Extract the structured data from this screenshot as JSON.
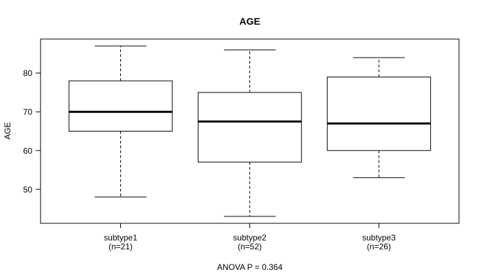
{
  "title": "AGE",
  "y_axis": {
    "label": "AGE",
    "ticks": [
      50,
      60,
      70,
      80
    ]
  },
  "footer": {
    "anova_label": "ANOVA P = 0.364"
  },
  "colors": {
    "background": "#ffffff",
    "line": "#000000",
    "box_fill": "#ffffff",
    "text": "#000000"
  },
  "chart_data": {
    "type": "boxplot",
    "title": "AGE",
    "xlabel": "",
    "ylabel": "AGE",
    "ylim": [
      41.2,
      88.8
    ],
    "yticks": [
      50,
      60,
      70,
      80
    ],
    "grid": false,
    "legend": "none",
    "categories": [
      "subtype1",
      "subtype2",
      "subtype3"
    ],
    "category_sublabels": [
      "(n=21)",
      "(n=52)",
      "(n=26)"
    ],
    "groups": [
      {
        "label": "subtype1",
        "n": 21,
        "whisker_low": 48,
        "q1": 65,
        "median": 70,
        "q3": 78,
        "whisker_high": 87
      },
      {
        "label": "subtype2",
        "n": 52,
        "whisker_low": 43,
        "q1": 57,
        "median": 67.5,
        "q3": 75,
        "whisker_high": 86
      },
      {
        "label": "subtype3",
        "n": 26,
        "whisker_low": 53,
        "q1": 60,
        "median": 67,
        "q3": 79,
        "whisker_high": 84
      }
    ],
    "annotation": "ANOVA P = 0.364"
  }
}
